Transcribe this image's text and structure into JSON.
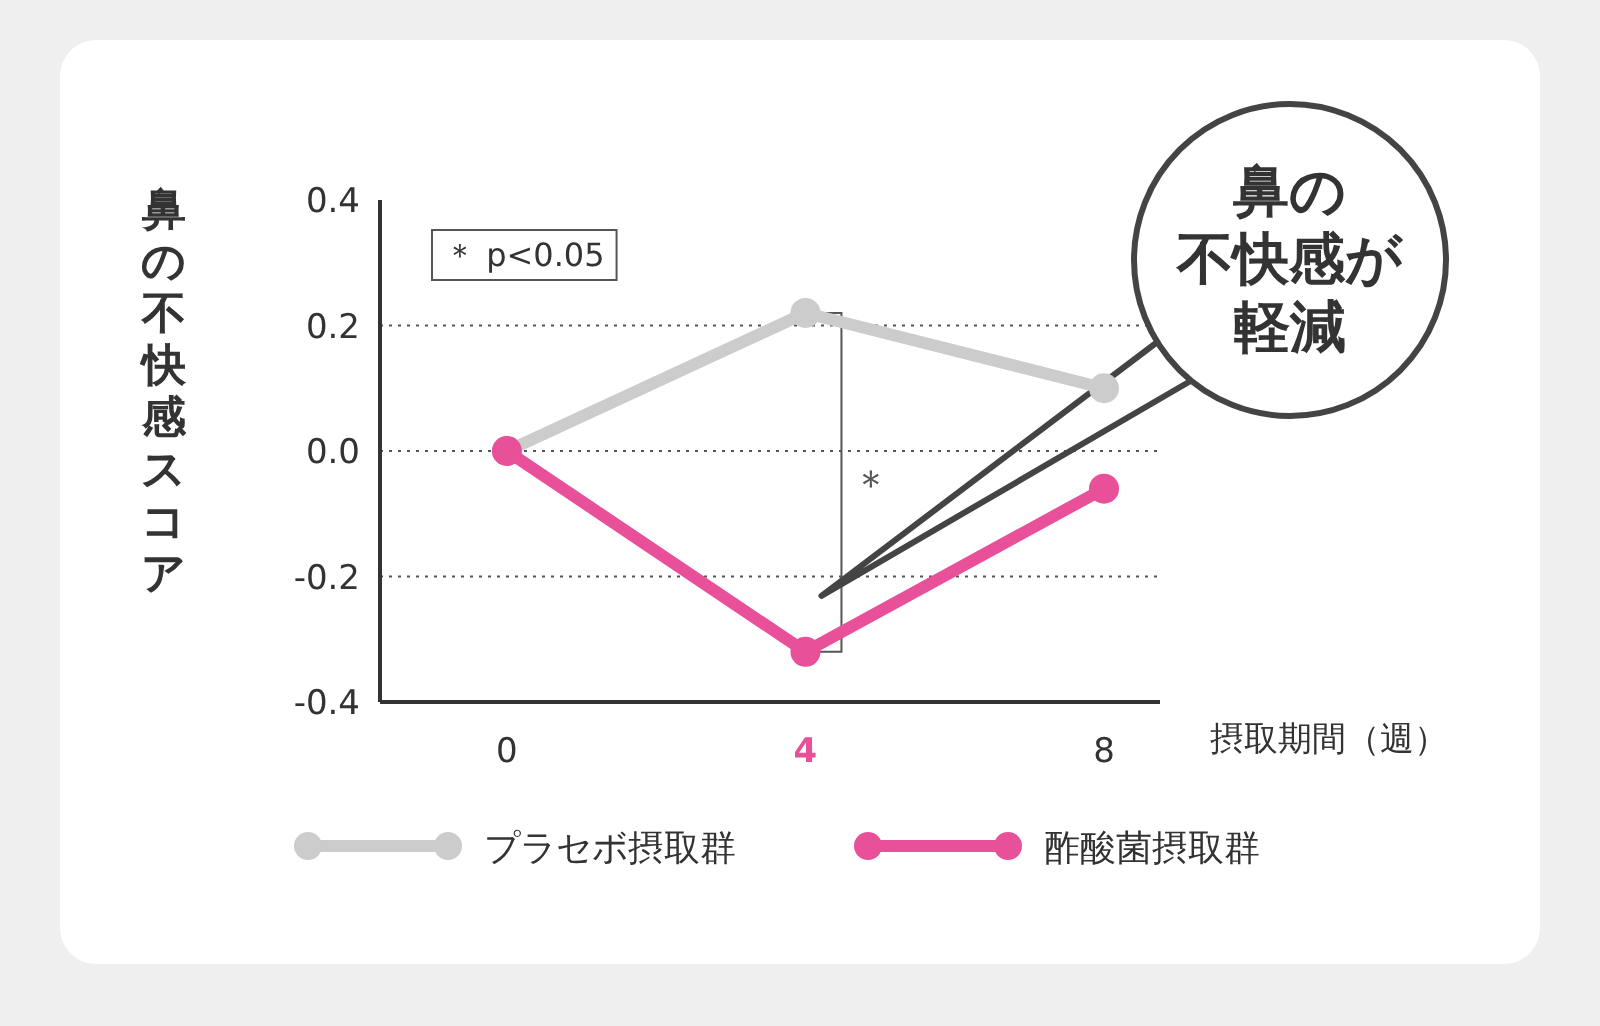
{
  "chart_data": {
    "type": "line",
    "xlabel": "摂取期間（週）",
    "ylabel": "鼻の不快感スコア",
    "x": [
      0,
      4,
      8
    ],
    "series": [
      {
        "name": "プラセボ摂取群",
        "color": "#cccccc",
        "values": [
          0,
          0.22,
          0.1
        ]
      },
      {
        "name": "酢酸菌摂取群",
        "color": "#e8509a",
        "values": [
          0,
          -0.32,
          -0.06
        ]
      }
    ],
    "xlim": [
      -1.7,
      8.75
    ],
    "xticks": [
      0,
      4,
      8
    ],
    "ylim": [
      -0.4,
      0.4
    ],
    "yticks": [
      {
        "value": -0.4,
        "label": "-0.4"
      },
      {
        "value": -0.2,
        "label": "-0.2"
      },
      {
        "value": 0,
        "label": "0.0"
      },
      {
        "value": 0.2,
        "label": "0.2"
      },
      {
        "value": 0.4,
        "label": "0.4"
      }
    ],
    "grid": "y",
    "legend": "bottom",
    "marker": "circle",
    "line_style": "solid",
    "annotations": [
      "＊ p<0.05",
      "＊",
      "鼻の不快感が軽減"
    ]
  }
}
